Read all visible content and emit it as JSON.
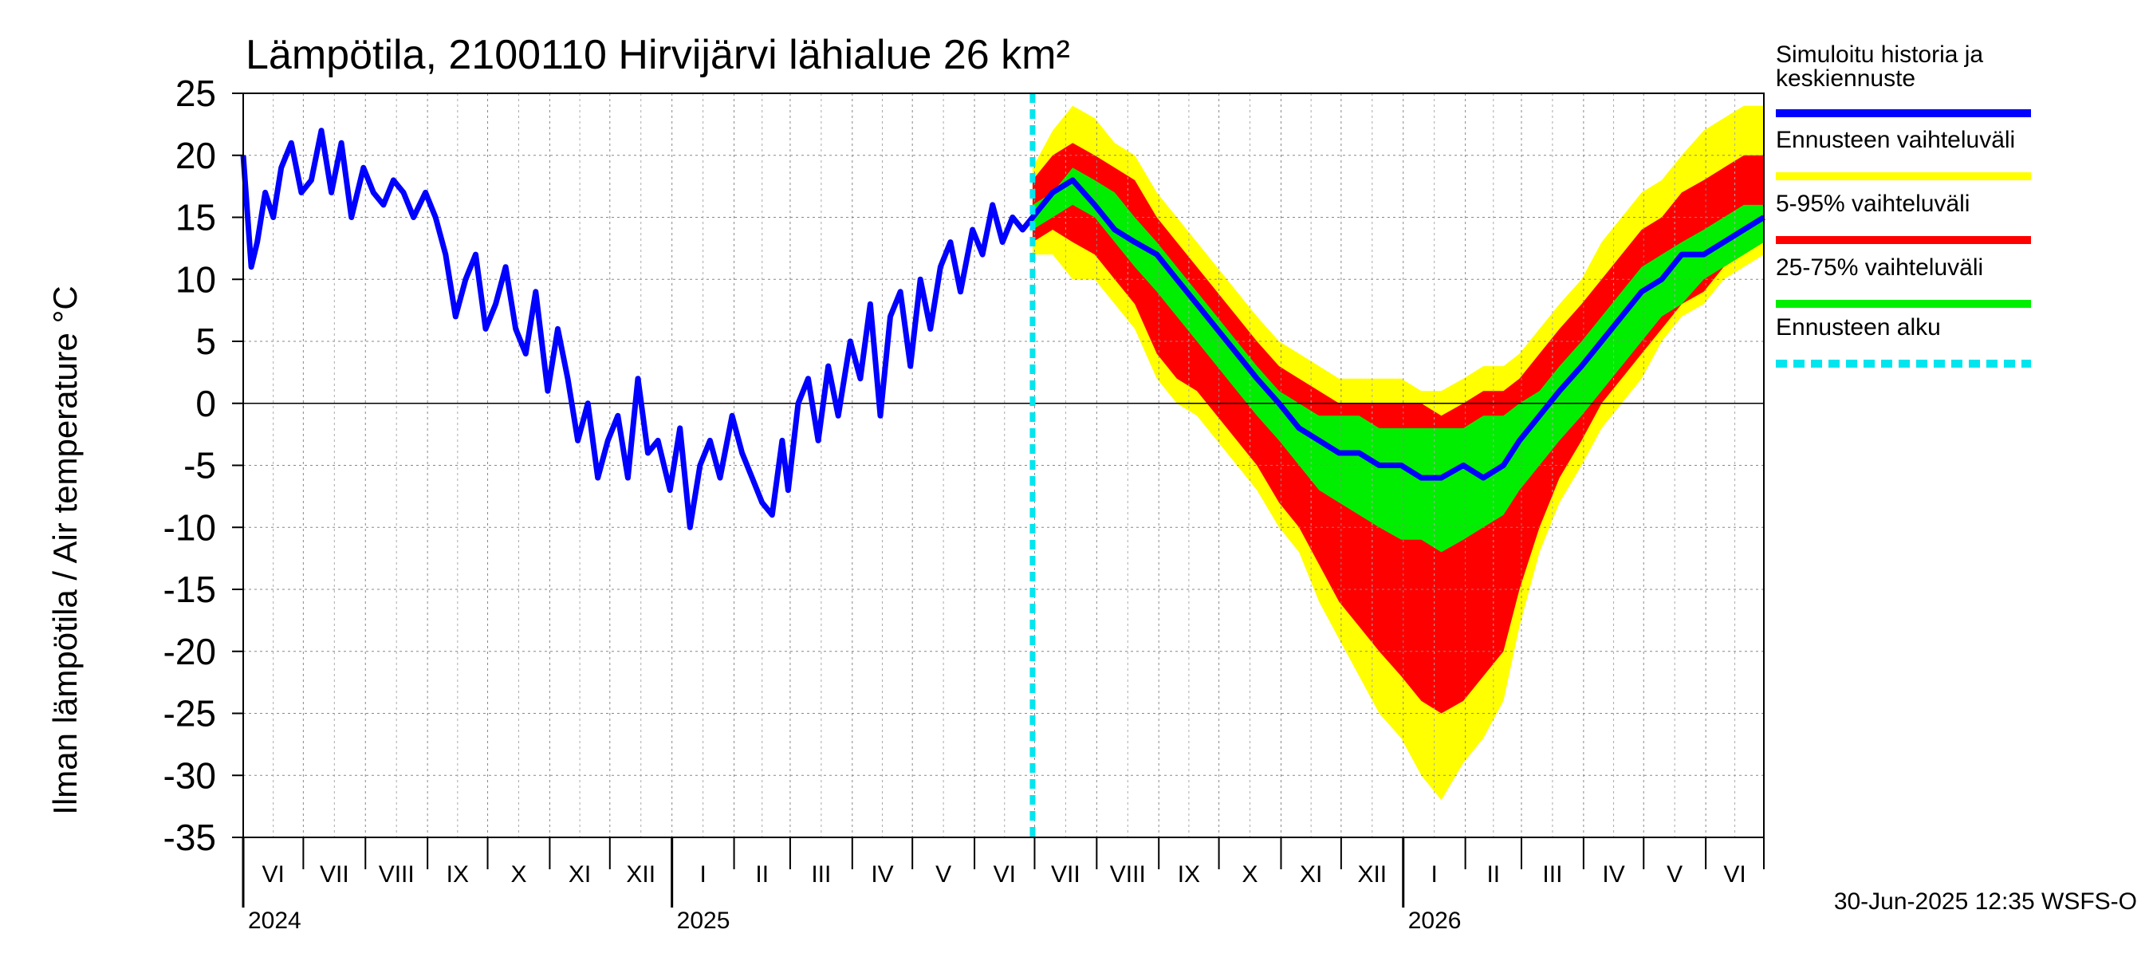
{
  "chart_data": {
    "type": "line",
    "title": "Lämpötila, 2100110 Hirvijärvi lähialue 26 km²",
    "ylabel": "Ilman lämpötila / Air temperature    °C",
    "ylim": [
      -35,
      25
    ],
    "yticks": [
      25,
      20,
      15,
      10,
      5,
      0,
      -5,
      -10,
      -15,
      -20,
      -25,
      -30,
      -35
    ],
    "xlim": [
      "2024-06-01",
      "2026-06-30"
    ],
    "grid": true,
    "legend_position": "right",
    "forecast_start": "2025-06-30",
    "months": [
      {
        "label": "VI",
        "start": "2024-06-01"
      },
      {
        "label": "VII",
        "start": "2024-07-01"
      },
      {
        "label": "VIII",
        "start": "2024-08-01"
      },
      {
        "label": "IX",
        "start": "2024-09-01"
      },
      {
        "label": "X",
        "start": "2024-10-01"
      },
      {
        "label": "XI",
        "start": "2024-11-01"
      },
      {
        "label": "XII",
        "start": "2024-12-01"
      },
      {
        "label": "I",
        "start": "2025-01-01"
      },
      {
        "label": "II",
        "start": "2025-02-01"
      },
      {
        "label": "III",
        "start": "2025-03-01"
      },
      {
        "label": "IV",
        "start": "2025-04-01"
      },
      {
        "label": "V",
        "start": "2025-05-01"
      },
      {
        "label": "VI",
        "start": "2025-06-01"
      },
      {
        "label": "VII",
        "start": "2025-07-01"
      },
      {
        "label": "VIII",
        "start": "2025-08-01"
      },
      {
        "label": "IX",
        "start": "2025-09-01"
      },
      {
        "label": "X",
        "start": "2025-10-01"
      },
      {
        "label": "XI",
        "start": "2025-11-01"
      },
      {
        "label": "XII",
        "start": "2025-12-01"
      },
      {
        "label": "I",
        "start": "2026-01-01"
      },
      {
        "label": "II",
        "start": "2026-02-01"
      },
      {
        "label": "III",
        "start": "2026-03-01"
      },
      {
        "label": "IV",
        "start": "2026-04-01"
      },
      {
        "label": "V",
        "start": "2026-05-01"
      },
      {
        "label": "VI",
        "start": "2026-06-01"
      }
    ],
    "years": [
      {
        "label": "2024",
        "at": "2024-06-01"
      },
      {
        "label": "2025",
        "at": "2025-01-01"
      },
      {
        "label": "2026",
        "at": "2026-01-01"
      }
    ],
    "legend": [
      {
        "label": "Simuloitu historia ja keskiennuste",
        "color": "#0000ff",
        "style": "solid"
      },
      {
        "label": "Ennusteen vaihteluväli",
        "color": "#ffff00",
        "style": "solid"
      },
      {
        "label": "5-95% vaihteluväli",
        "color": "#ff0000",
        "style": "solid"
      },
      {
        "label": "25-75% vaihteluväli",
        "color": "#00ee00",
        "style": "solid"
      },
      {
        "label": "Ennusteen alku",
        "color": "#00e5ee",
        "style": "dashed"
      }
    ],
    "series": [
      {
        "name": "Simuloitu historia ja keskiennuste",
        "color": "#0000ff",
        "x": [
          "2024-06-01",
          "2024-06-05",
          "2024-06-08",
          "2024-06-12",
          "2024-06-16",
          "2024-06-20",
          "2024-06-25",
          "2024-06-30",
          "2024-07-05",
          "2024-07-10",
          "2024-07-15",
          "2024-07-20",
          "2024-07-25",
          "2024-07-31",
          "2024-08-05",
          "2024-08-10",
          "2024-08-15",
          "2024-08-20",
          "2024-08-25",
          "2024-08-31",
          "2024-09-05",
          "2024-09-10",
          "2024-09-15",
          "2024-09-20",
          "2024-09-25",
          "2024-09-30",
          "2024-10-05",
          "2024-10-10",
          "2024-10-15",
          "2024-10-20",
          "2024-10-25",
          "2024-10-31",
          "2024-11-05",
          "2024-11-10",
          "2024-11-15",
          "2024-11-20",
          "2024-11-25",
          "2024-11-30",
          "2024-12-05",
          "2024-12-10",
          "2024-12-15",
          "2024-12-20",
          "2024-12-25",
          "2024-12-31",
          "2025-01-05",
          "2025-01-10",
          "2025-01-15",
          "2025-01-20",
          "2025-01-25",
          "2025-01-31",
          "2025-02-05",
          "2025-02-10",
          "2025-02-15",
          "2025-02-20",
          "2025-02-25",
          "2025-02-28",
          "2025-03-05",
          "2025-03-10",
          "2025-03-15",
          "2025-03-20",
          "2025-03-25",
          "2025-03-31",
          "2025-04-05",
          "2025-04-10",
          "2025-04-15",
          "2025-04-20",
          "2025-04-25",
          "2025-04-30",
          "2025-05-05",
          "2025-05-10",
          "2025-05-15",
          "2025-05-20",
          "2025-05-25",
          "2025-05-31",
          "2025-06-05",
          "2025-06-10",
          "2025-06-15",
          "2025-06-20",
          "2025-06-25",
          "2025-06-30",
          "2025-07-10",
          "2025-07-20",
          "2025-07-31",
          "2025-08-10",
          "2025-08-20",
          "2025-08-31",
          "2025-09-10",
          "2025-09-20",
          "2025-09-30",
          "2025-10-10",
          "2025-10-20",
          "2025-10-31",
          "2025-11-10",
          "2025-11-20",
          "2025-11-30",
          "2025-12-10",
          "2025-12-20",
          "2025-12-31",
          "2026-01-10",
          "2026-01-20",
          "2026-01-31",
          "2026-02-10",
          "2026-02-20",
          "2026-02-28",
          "2026-03-10",
          "2026-03-20",
          "2026-03-31",
          "2026-04-10",
          "2026-04-20",
          "2026-04-30",
          "2026-05-10",
          "2026-05-20",
          "2026-05-31",
          "2026-06-10",
          "2026-06-20",
          "2026-06-30"
        ],
        "y": [
          20,
          11,
          13,
          17,
          15,
          19,
          21,
          17,
          18,
          22,
          17,
          21,
          15,
          19,
          17,
          16,
          18,
          17,
          15,
          17,
          15,
          12,
          7,
          10,
          12,
          6,
          8,
          11,
          6,
          4,
          9,
          1,
          6,
          2,
          -3,
          0,
          -6,
          -3,
          -1,
          -6,
          2,
          -4,
          -3,
          -7,
          -2,
          -10,
          -5,
          -3,
          -6,
          -1,
          -4,
          -6,
          -8,
          -9,
          -3,
          -7,
          0,
          2,
          -3,
          3,
          -1,
          5,
          2,
          8,
          -1,
          7,
          9,
          3,
          10,
          6,
          11,
          13,
          9,
          14,
          12,
          16,
          13,
          15,
          14,
          15,
          17,
          18,
          16,
          14,
          13,
          12,
          10,
          8,
          6,
          4,
          2,
          0,
          -2,
          -3,
          -4,
          -4,
          -5,
          -5,
          -6,
          -6,
          -5,
          -6,
          -5,
          -3,
          -1,
          1,
          3,
          5,
          7,
          9,
          10,
          12,
          12,
          13,
          14,
          15
        ]
      }
    ],
    "bands": [
      {
        "name": "Ennusteen vaihteluväli",
        "color": "#ffff00",
        "x": [
          "2025-06-30",
          "2025-07-10",
          "2025-07-20",
          "2025-07-31",
          "2025-08-10",
          "2025-08-20",
          "2025-08-31",
          "2025-09-10",
          "2025-09-20",
          "2025-09-30",
          "2025-10-10",
          "2025-10-20",
          "2025-10-31",
          "2025-11-10",
          "2025-11-20",
          "2025-11-30",
          "2025-12-10",
          "2025-12-20",
          "2025-12-31",
          "2026-01-10",
          "2026-01-20",
          "2026-01-31",
          "2026-02-10",
          "2026-02-20",
          "2026-02-28",
          "2026-03-10",
          "2026-03-20",
          "2026-03-31",
          "2026-04-10",
          "2026-04-20",
          "2026-04-30",
          "2026-05-10",
          "2026-05-20",
          "2026-05-31",
          "2026-06-10",
          "2026-06-20",
          "2026-06-30"
        ],
        "low": [
          12,
          12,
          10,
          10,
          8,
          6,
          2,
          0,
          -1,
          -3,
          -5,
          -7,
          -10,
          -12,
          -16,
          -19,
          -22,
          -25,
          -27,
          -30,
          -32,
          -29,
          -27,
          -24,
          -18,
          -12,
          -8,
          -5,
          -2,
          0,
          2,
          5,
          7,
          8,
          10,
          11,
          12
        ],
        "high": [
          19,
          22,
          24,
          23,
          21,
          20,
          17,
          15,
          13,
          11,
          9,
          7,
          5,
          4,
          3,
          2,
          2,
          2,
          2,
          1,
          1,
          2,
          3,
          3,
          4,
          6,
          8,
          10,
          13,
          15,
          17,
          18,
          20,
          22,
          23,
          24,
          24
        ]
      },
      {
        "name": "5-95% vaihteluväli",
        "color": "#ff0000",
        "x": [
          "2025-06-30",
          "2025-07-10",
          "2025-07-20",
          "2025-07-31",
          "2025-08-10",
          "2025-08-20",
          "2025-08-31",
          "2025-09-10",
          "2025-09-20",
          "2025-09-30",
          "2025-10-10",
          "2025-10-20",
          "2025-10-31",
          "2025-11-10",
          "2025-11-20",
          "2025-11-30",
          "2025-12-10",
          "2025-12-20",
          "2025-12-31",
          "2026-01-10",
          "2026-01-20",
          "2026-01-31",
          "2026-02-10",
          "2026-02-20",
          "2026-02-28",
          "2026-03-10",
          "2026-03-20",
          "2026-03-31",
          "2026-04-10",
          "2026-04-20",
          "2026-04-30",
          "2026-05-10",
          "2026-05-20",
          "2026-05-31",
          "2026-06-10",
          "2026-06-20",
          "2026-06-30"
        ],
        "low": [
          13,
          14,
          13,
          12,
          10,
          8,
          4,
          2,
          1,
          -1,
          -3,
          -5,
          -8,
          -10,
          -13,
          -16,
          -18,
          -20,
          -22,
          -24,
          -25,
          -24,
          -22,
          -20,
          -15,
          -10,
          -6,
          -3,
          0,
          2,
          4,
          6,
          8,
          9,
          11,
          12,
          13
        ],
        "high": [
          18,
          20,
          21,
          20,
          19,
          18,
          15,
          13,
          11,
          9,
          7,
          5,
          3,
          2,
          1,
          0,
          0,
          0,
          0,
          0,
          -1,
          0,
          1,
          1,
          2,
          4,
          6,
          8,
          10,
          12,
          14,
          15,
          17,
          18,
          19,
          20,
          20
        ]
      },
      {
        "name": "25-75% vaihteluväli",
        "color": "#00ee00",
        "x": [
          "2025-06-30",
          "2025-07-10",
          "2025-07-20",
          "2025-07-31",
          "2025-08-10",
          "2025-08-20",
          "2025-08-31",
          "2025-09-10",
          "2025-09-20",
          "2025-09-30",
          "2025-10-10",
          "2025-10-20",
          "2025-10-31",
          "2025-11-10",
          "2025-11-20",
          "2025-11-30",
          "2025-12-10",
          "2025-12-20",
          "2025-12-31",
          "2026-01-10",
          "2026-01-20",
          "2026-01-31",
          "2026-02-10",
          "2026-02-20",
          "2026-02-28",
          "2026-03-10",
          "2026-03-20",
          "2026-03-31",
          "2026-04-10",
          "2026-04-20",
          "2026-04-30",
          "2026-05-10",
          "2026-05-20",
          "2026-05-31",
          "2026-06-10",
          "2026-06-20",
          "2026-06-30"
        ],
        "low": [
          14,
          15,
          16,
          15,
          13,
          11,
          9,
          7,
          5,
          3,
          1,
          -1,
          -3,
          -5,
          -7,
          -8,
          -9,
          -10,
          -11,
          -11,
          -12,
          -11,
          -10,
          -9,
          -7,
          -5,
          -3,
          -1,
          1,
          3,
          5,
          7,
          8,
          10,
          11,
          12,
          13
        ],
        "high": [
          16,
          17,
          19,
          18,
          17,
          15,
          13,
          11,
          9,
          7,
          5,
          3,
          1,
          0,
          -1,
          -1,
          -1,
          -2,
          -2,
          -2,
          -2,
          -2,
          -1,
          -1,
          0,
          1,
          3,
          5,
          7,
          9,
          11,
          12,
          13,
          14,
          15,
          16,
          16
        ]
      }
    ]
  },
  "footer": {
    "timestamp": "30-Jun-2025 12:35 WSFS-O"
  }
}
